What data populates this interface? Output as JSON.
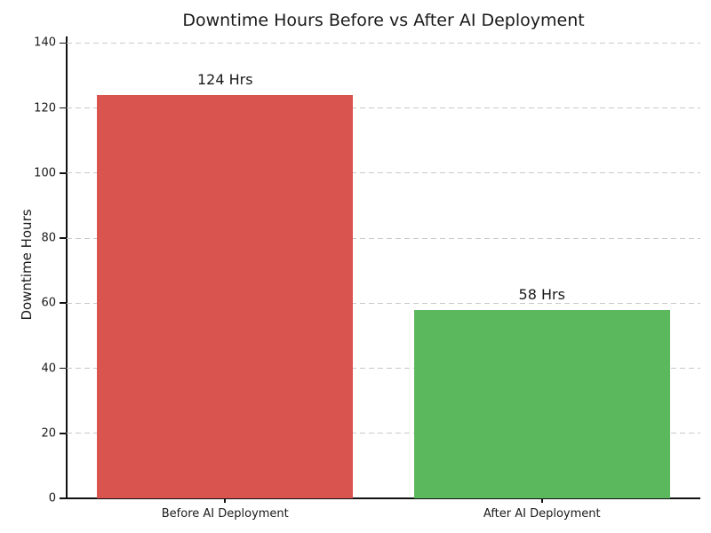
{
  "chart_data": {
    "type": "bar",
    "title": "Downtime Hours Before vs After AI Deployment",
    "xlabel": "",
    "ylabel": "Downtime Hours",
    "categories": [
      "Before AI Deployment",
      "After AI Deployment"
    ],
    "values": [
      124,
      58
    ],
    "bar_labels": [
      "124 Hrs",
      "58 Hrs"
    ],
    "bar_colors": [
      "#d9534f",
      "#5cb85c"
    ],
    "yticks": [
      0,
      20,
      40,
      60,
      80,
      100,
      120,
      140
    ],
    "ylim": [
      0,
      142
    ],
    "grid": "horizontal dashed",
    "legend": "none"
  },
  "colors": {
    "background": "#ffffff",
    "axis": "#111111",
    "gridline": "#c9c9c9",
    "text": "#1a1a1a",
    "bar_before": "#d9534f",
    "bar_after": "#5cb85c"
  }
}
